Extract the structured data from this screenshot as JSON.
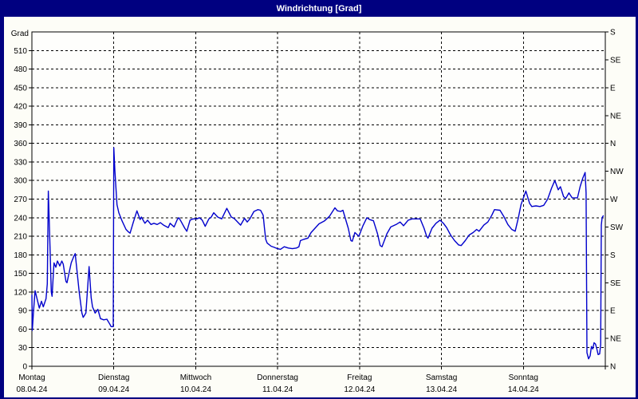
{
  "window": {
    "title": "Windrichtung [Grad]"
  },
  "colors": {
    "frame": "#000080",
    "panel": "#fdfdf7",
    "plot_bg": "#fefefc",
    "line": "#0000cc",
    "grid": "#000000",
    "axis": "#000000",
    "text": "#000000",
    "title_text": "#ffffff"
  },
  "chart_data": {
    "type": "line",
    "title": "Windrichtung [Grad]",
    "ylabel_left": "Grad",
    "ylim": [
      0,
      540
    ],
    "xlim_days": [
      0,
      7
    ],
    "grid": true,
    "y_left_ticks": [
      0,
      30,
      60,
      90,
      120,
      150,
      180,
      210,
      240,
      270,
      300,
      330,
      360,
      390,
      420,
      450,
      480,
      510
    ],
    "y_right_ticks": [
      {
        "value": 0,
        "label": "N"
      },
      {
        "value": 45,
        "label": "NE"
      },
      {
        "value": 90,
        "label": "E"
      },
      {
        "value": 135,
        "label": "SE"
      },
      {
        "value": 180,
        "label": "S"
      },
      {
        "value": 225,
        "label": "SW"
      },
      {
        "value": 270,
        "label": "W"
      },
      {
        "value": 315,
        "label": "NW"
      },
      {
        "value": 360,
        "label": "N"
      },
      {
        "value": 405,
        "label": "NE"
      },
      {
        "value": 450,
        "label": "E"
      },
      {
        "value": 495,
        "label": "SE"
      },
      {
        "value": 540,
        "label": "S"
      }
    ],
    "x_days": [
      {
        "name": "Montag",
        "date": "08.04.24"
      },
      {
        "name": "Dienstag",
        "date": "09.04.24"
      },
      {
        "name": "Mittwoch",
        "date": "10.04.24"
      },
      {
        "name": "Donnerstag",
        "date": "11.04.24"
      },
      {
        "name": "Freitag",
        "date": "12.04.24"
      },
      {
        "name": "Samstag",
        "date": "13.04.24"
      },
      {
        "name": "Sonntag",
        "date": "14.04.24"
      }
    ],
    "series": [
      {
        "name": "Windrichtung",
        "color": "#0000cc",
        "points": [
          [
            0.0,
            115
          ],
          [
            0.005,
            58
          ],
          [
            0.02,
            90
          ],
          [
            0.039,
            122
          ],
          [
            0.091,
            94
          ],
          [
            0.117,
            105
          ],
          [
            0.139,
            96
          ],
          [
            0.172,
            109
          ],
          [
            0.188,
            133
          ],
          [
            0.201,
            283
          ],
          [
            0.221,
            193
          ],
          [
            0.237,
            120
          ],
          [
            0.246,
            113
          ],
          [
            0.27,
            167
          ],
          [
            0.292,
            160
          ],
          [
            0.312,
            170
          ],
          [
            0.341,
            162
          ],
          [
            0.365,
            170
          ],
          [
            0.383,
            165
          ],
          [
            0.416,
            137
          ],
          [
            0.428,
            135
          ],
          [
            0.48,
            167
          ],
          [
            0.513,
            178
          ],
          [
            0.529,
            182
          ],
          [
            0.577,
            120
          ],
          [
            0.61,
            86
          ],
          [
            0.626,
            79
          ],
          [
            0.659,
            86
          ],
          [
            0.698,
            161
          ],
          [
            0.723,
            111
          ],
          [
            0.74,
            96
          ],
          [
            0.772,
            86
          ],
          [
            0.805,
            92
          ],
          [
            0.837,
            77
          ],
          [
            0.876,
            75
          ],
          [
            0.915,
            76
          ],
          [
            0.951,
            68
          ],
          [
            0.967,
            64
          ],
          [
            0.993,
            64
          ],
          [
            1.0,
            353
          ],
          [
            1.013,
            317
          ],
          [
            1.039,
            261
          ],
          [
            1.061,
            248
          ],
          [
            1.1,
            235
          ],
          [
            1.149,
            221
          ],
          [
            1.178,
            217
          ],
          [
            1.198,
            215
          ],
          [
            1.236,
            232
          ],
          [
            1.282,
            251
          ],
          [
            1.321,
            237
          ],
          [
            1.337,
            241
          ],
          [
            1.38,
            231
          ],
          [
            1.412,
            236
          ],
          [
            1.454,
            229
          ],
          [
            1.49,
            231
          ],
          [
            1.529,
            229
          ],
          [
            1.568,
            232
          ],
          [
            1.607,
            228
          ],
          [
            1.665,
            224
          ],
          [
            1.687,
            231
          ],
          [
            1.736,
            225
          ],
          [
            1.775,
            237
          ],
          [
            1.794,
            240
          ],
          [
            1.821,
            234
          ],
          [
            1.866,
            223
          ],
          [
            1.892,
            218
          ],
          [
            1.931,
            236
          ],
          [
            1.967,
            238
          ],
          [
            2.012,
            238
          ],
          [
            2.045,
            240
          ],
          [
            2.08,
            236
          ],
          [
            2.116,
            226
          ],
          [
            2.16,
            238
          ],
          [
            2.19,
            241
          ],
          [
            2.22,
            248
          ],
          [
            2.268,
            241
          ],
          [
            2.317,
            238
          ],
          [
            2.379,
            255
          ],
          [
            2.434,
            241
          ],
          [
            2.466,
            239
          ],
          [
            2.483,
            237
          ],
          [
            2.548,
            228
          ],
          [
            2.596,
            239
          ],
          [
            2.629,
            233
          ],
          [
            2.661,
            238
          ],
          [
            2.71,
            250
          ],
          [
            2.758,
            253
          ],
          [
            2.791,
            252
          ],
          [
            2.823,
            244
          ],
          [
            2.84,
            222
          ],
          [
            2.855,
            205
          ],
          [
            2.872,
            199
          ],
          [
            2.92,
            194
          ],
          [
            2.96,
            192
          ],
          [
            2.999,
            190
          ],
          [
            3.035,
            189
          ],
          [
            3.08,
            193
          ],
          [
            3.13,
            191
          ],
          [
            3.18,
            190
          ],
          [
            3.23,
            191
          ],
          [
            3.26,
            193
          ],
          [
            3.278,
            203
          ],
          [
            3.32,
            205
          ],
          [
            3.37,
            207
          ],
          [
            3.408,
            216
          ],
          [
            3.456,
            223
          ],
          [
            3.505,
            230
          ],
          [
            3.573,
            235
          ],
          [
            3.631,
            242
          ],
          [
            3.7,
            256
          ],
          [
            3.73,
            251
          ],
          [
            3.77,
            250
          ],
          [
            3.797,
            252
          ],
          [
            3.862,
            223
          ],
          [
            3.894,
            203
          ],
          [
            3.911,
            202
          ],
          [
            3.943,
            216
          ],
          [
            3.992,
            210
          ],
          [
            4.041,
            227
          ],
          [
            4.089,
            240
          ],
          [
            4.122,
            237
          ],
          [
            4.17,
            235
          ],
          [
            4.219,
            214
          ],
          [
            4.252,
            195
          ],
          [
            4.274,
            193
          ],
          [
            4.333,
            214
          ],
          [
            4.381,
            225
          ],
          [
            4.447,
            229
          ],
          [
            4.495,
            233
          ],
          [
            4.537,
            227
          ],
          [
            4.593,
            236
          ],
          [
            4.641,
            238
          ],
          [
            4.693,
            238
          ],
          [
            4.74,
            238
          ],
          [
            4.787,
            223
          ],
          [
            4.819,
            210
          ],
          [
            4.836,
            207
          ],
          [
            4.884,
            223
          ],
          [
            4.933,
            231
          ],
          [
            4.982,
            236
          ],
          [
            5.024,
            231
          ],
          [
            5.063,
            224
          ],
          [
            5.111,
            212
          ],
          [
            5.16,
            203
          ],
          [
            5.209,
            196
          ],
          [
            5.241,
            195
          ],
          [
            5.29,
            203
          ],
          [
            5.338,
            212
          ],
          [
            5.387,
            216
          ],
          [
            5.43,
            221
          ],
          [
            5.459,
            218
          ],
          [
            5.517,
            228
          ],
          [
            5.566,
            233
          ],
          [
            5.615,
            244
          ],
          [
            5.647,
            253
          ],
          [
            5.715,
            252
          ],
          [
            5.761,
            242
          ],
          [
            5.81,
            229
          ],
          [
            5.858,
            221
          ],
          [
            5.9,
            218
          ],
          [
            5.939,
            240
          ],
          [
            5.971,
            261
          ],
          [
            6.03,
            283
          ],
          [
            6.076,
            263
          ],
          [
            6.102,
            258
          ],
          [
            6.153,
            259
          ],
          [
            6.202,
            258
          ],
          [
            6.248,
            260
          ],
          [
            6.296,
            270
          ],
          [
            6.345,
            288
          ],
          [
            6.384,
            300
          ],
          [
            6.426,
            285
          ],
          [
            6.452,
            290
          ],
          [
            6.491,
            274
          ],
          [
            6.517,
            271
          ],
          [
            6.556,
            280
          ],
          [
            6.595,
            272
          ],
          [
            6.66,
            272
          ],
          [
            6.692,
            290
          ],
          [
            6.725,
            304
          ],
          [
            6.754,
            313
          ],
          [
            6.765,
            280
          ],
          [
            6.776,
            22
          ],
          [
            6.796,
            12
          ],
          [
            6.815,
            17
          ],
          [
            6.831,
            32
          ],
          [
            6.847,
            28
          ],
          [
            6.863,
            38
          ],
          [
            6.88,
            36
          ],
          [
            6.895,
            29
          ],
          [
            6.912,
            19
          ],
          [
            6.931,
            20
          ],
          [
            6.944,
            35
          ],
          [
            6.951,
            228
          ],
          [
            6.961,
            240
          ],
          [
            6.975,
            243
          ]
        ]
      }
    ]
  }
}
